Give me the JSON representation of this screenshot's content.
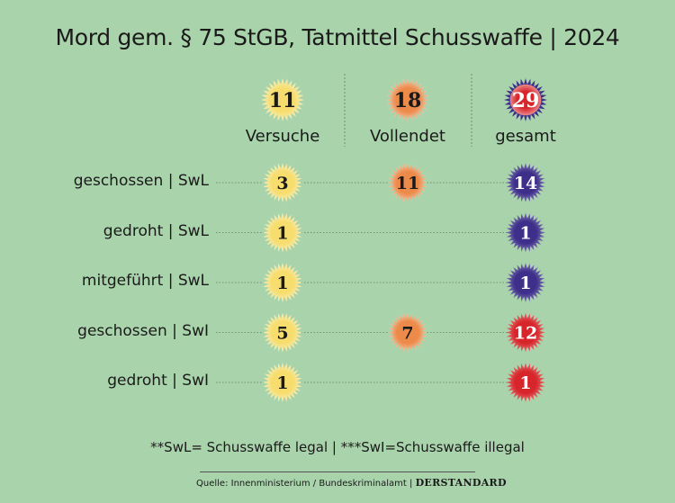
{
  "title": "Mord gem. § 75 StGB, Tatmittel Schusswaffe | 2024",
  "footnote": "**SwL= Schusswaffe legal | ***SwI=Schusswaffe illegal",
  "source": "Quelle: Innenministerium / Bundeskriminalamt |",
  "brand": "DERSTANDARD",
  "colors": {
    "background": "#a9d3ab",
    "versuche": "#f6dd6e",
    "vollendet": "#ec8a4a",
    "gesamt_legal": "#3d2f8a",
    "gesamt_illegal": "#d7262b"
  },
  "chart_data": {
    "type": "table",
    "columns": [
      "Versuche",
      "Vollendet",
      "gesamt"
    ],
    "column_totals": [
      11,
      18,
      29
    ],
    "rows": [
      {
        "label": "geschossen | SwL",
        "values": [
          3,
          11,
          14
        ]
      },
      {
        "label": "gedroht | SwL",
        "values": [
          1,
          null,
          1
        ]
      },
      {
        "label": "mitgeführt | SwL",
        "values": [
          1,
          null,
          1
        ]
      },
      {
        "label": "geschossen | SwI",
        "values": [
          5,
          7,
          12
        ]
      },
      {
        "label": "gedroht | SwI",
        "values": [
          1,
          null,
          1
        ]
      }
    ]
  }
}
